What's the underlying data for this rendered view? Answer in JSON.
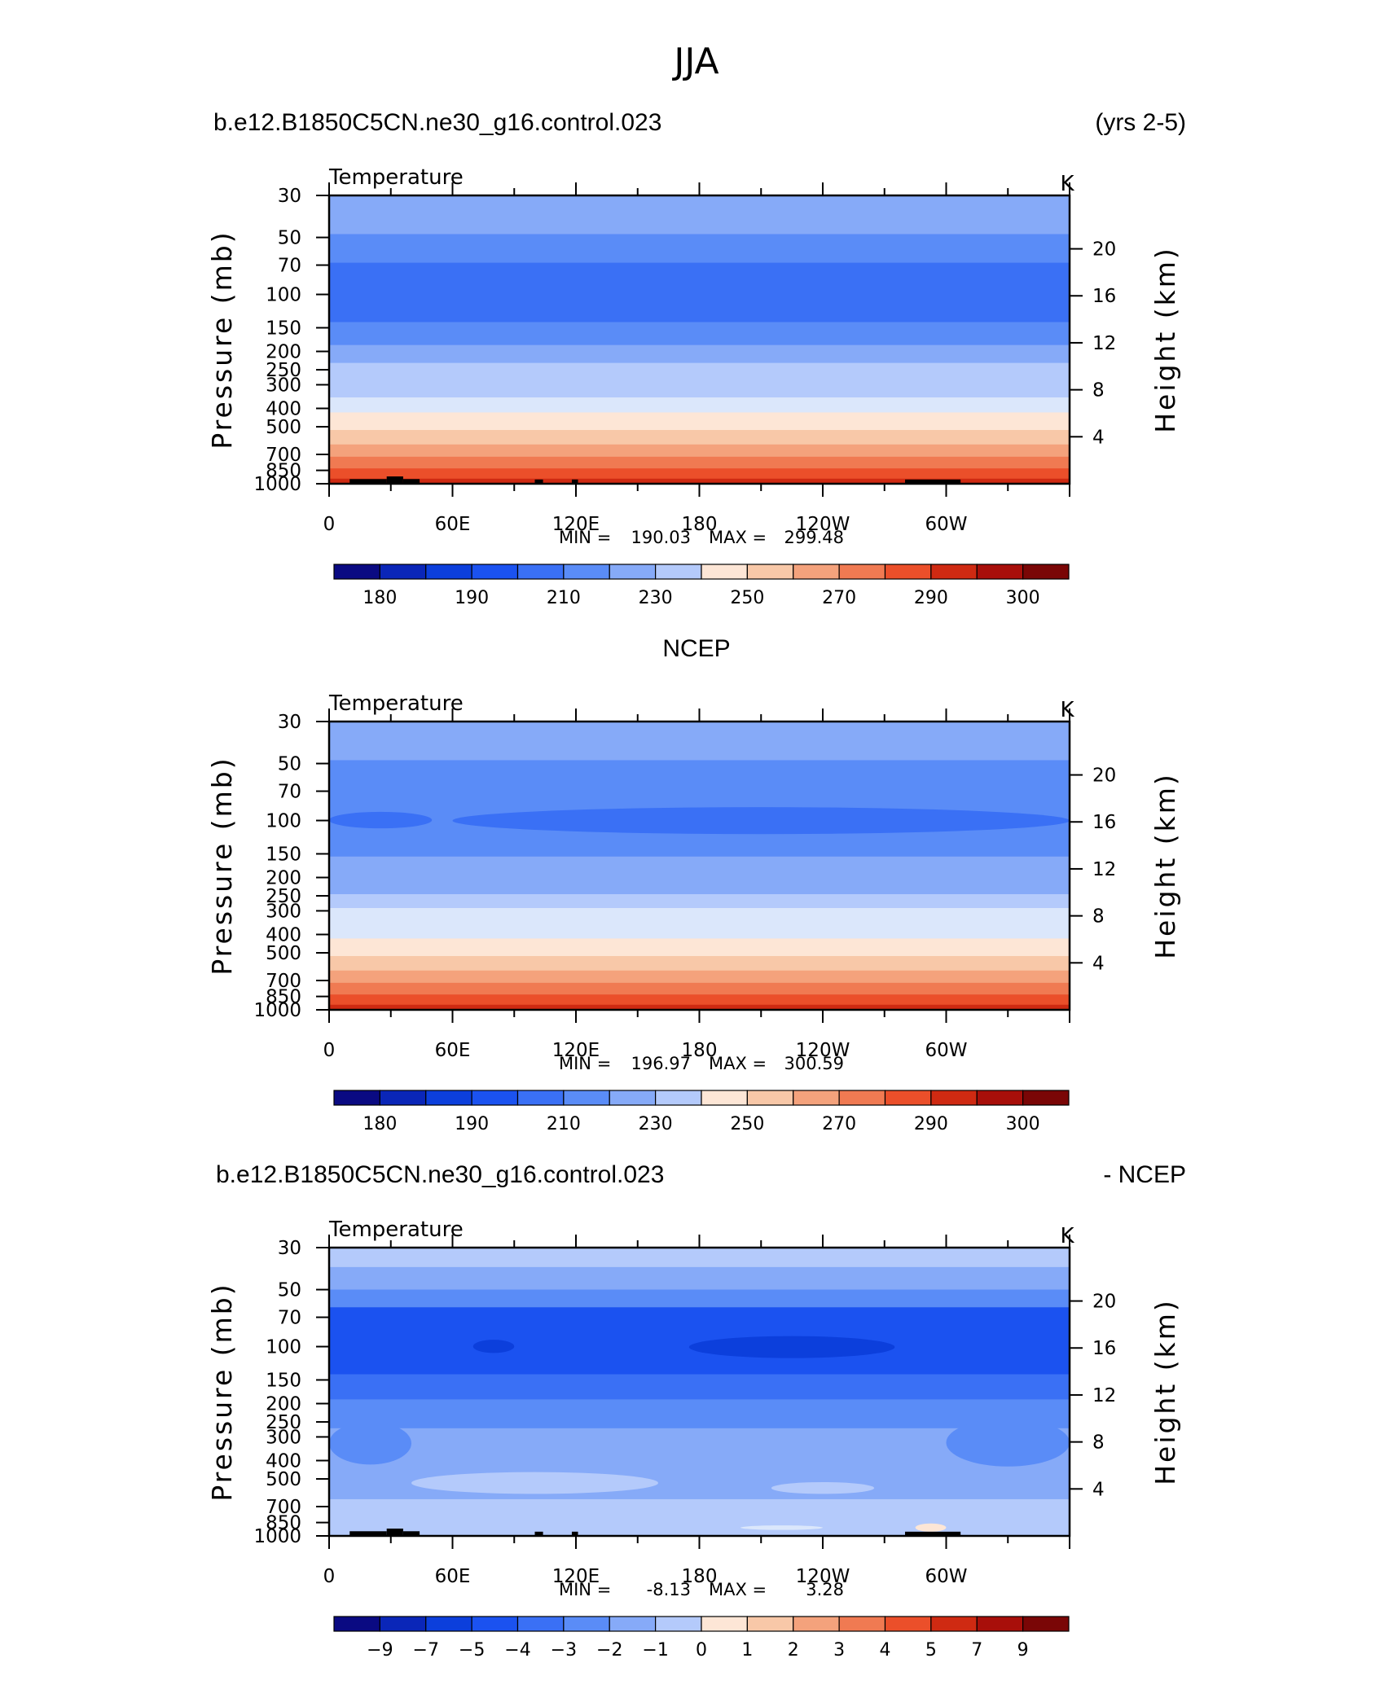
{
  "figure": {
    "season_title": "JJA",
    "case_name": "b.e12.B1850C5CN.ne30_g16.control.023",
    "years": "(yrs 2-5)",
    "obs_name": "NCEP",
    "diff_suffix": "- NCEP"
  },
  "chart_data": [
    {
      "type": "heatmap",
      "id": "model",
      "title": "b.e12.B1850C5CN.ne30_g16.control.023",
      "title_right": "(yrs 2-5)",
      "variable": "Temperature",
      "units": "K",
      "xlabel": "",
      "ylabel": "Pressure (mb)",
      "ylabel_right": "Height (km)",
      "x_ticks": [
        "0",
        "60E",
        "120E",
        "180",
        "120W",
        "60W"
      ],
      "x_range": [
        0,
        360
      ],
      "y_ticks": [
        "30",
        "50",
        "70",
        "100",
        "150",
        "200",
        "250",
        "300",
        "400",
        "500",
        "700",
        "850",
        "1000"
      ],
      "y_range_mb": [
        1000,
        30
      ],
      "height_ticks_km": [
        "20",
        "16",
        "12",
        "8",
        "4"
      ],
      "stats": {
        "min_label": "MIN =",
        "min": "190.03",
        "max_label": "MAX =",
        "max": "299.48"
      },
      "colorbar_labels": [
        "180",
        "190",
        "210",
        "230",
        "250",
        "270",
        "290",
        "300"
      ],
      "contour_levels_K": [
        180,
        185,
        190,
        200,
        210,
        220,
        230,
        240,
        250,
        260,
        270,
        280,
        290,
        295,
        300
      ],
      "bands": [
        {
          "p_top": 30,
          "p_bot": 48,
          "value": 222
        },
        {
          "p_top": 48,
          "p_bot": 68,
          "value": 215
        },
        {
          "p_top": 68,
          "p_bot": 140,
          "value": 207
        },
        {
          "p_top": 140,
          "p_bot": 185,
          "value": 215
        },
        {
          "p_top": 185,
          "p_bot": 230,
          "value": 222
        },
        {
          "p_top": 230,
          "p_bot": 280,
          "value": 232
        },
        {
          "p_top": 280,
          "p_bot": 350,
          "value": 238
        },
        {
          "p_top": 350,
          "p_bot": 420,
          "value": 245
        },
        {
          "p_top": 420,
          "p_bot": 520,
          "value": 255
        },
        {
          "p_top": 520,
          "p_bot": 620,
          "value": 265
        },
        {
          "p_top": 620,
          "p_bot": 720,
          "value": 275
        },
        {
          "p_top": 720,
          "p_bot": 830,
          "value": 285
        },
        {
          "p_top": 830,
          "p_bot": 940,
          "value": 292
        },
        {
          "p_top": 940,
          "p_bot": 1000,
          "value": 297
        }
      ],
      "topography": true
    },
    {
      "type": "heatmap",
      "id": "obs",
      "title": "NCEP",
      "variable": "Temperature",
      "units": "K",
      "xlabel": "",
      "ylabel": "Pressure (mb)",
      "ylabel_right": "Height (km)",
      "x_ticks": [
        "0",
        "60E",
        "120E",
        "180",
        "120W",
        "60W"
      ],
      "x_range": [
        0,
        360
      ],
      "y_ticks": [
        "30",
        "50",
        "70",
        "100",
        "150",
        "200",
        "250",
        "300",
        "400",
        "500",
        "700",
        "850",
        "1000"
      ],
      "y_range_mb": [
        1000,
        30
      ],
      "height_ticks_km": [
        "20",
        "16",
        "12",
        "8",
        "4"
      ],
      "stats": {
        "min_label": "MIN =",
        "min": "196.97",
        "max_label": "MAX =",
        "max": "300.59"
      },
      "colorbar_labels": [
        "180",
        "190",
        "210",
        "230",
        "250",
        "270",
        "290",
        "300"
      ],
      "contour_levels_K": [
        180,
        185,
        190,
        200,
        210,
        220,
        230,
        240,
        250,
        260,
        270,
        280,
        290,
        295,
        300
      ],
      "bands": [
        {
          "p_top": 30,
          "p_bot": 48,
          "value": 222
        },
        {
          "p_top": 48,
          "p_bot": 155,
          "value": 215
        },
        {
          "p_top": 155,
          "p_bot": 195,
          "value": 222
        },
        {
          "p_top": 195,
          "p_bot": 245,
          "value": 228
        },
        {
          "p_top": 245,
          "p_bot": 290,
          "value": 235
        },
        {
          "p_top": 290,
          "p_bot": 350,
          "value": 242
        },
        {
          "p_top": 350,
          "p_bot": 420,
          "value": 248
        },
        {
          "p_top": 420,
          "p_bot": 520,
          "value": 255
        },
        {
          "p_top": 520,
          "p_bot": 620,
          "value": 265
        },
        {
          "p_top": 620,
          "p_bot": 720,
          "value": 275
        },
        {
          "p_top": 720,
          "p_bot": 830,
          "value": 285
        },
        {
          "p_top": 830,
          "p_bot": 940,
          "value": 292
        },
        {
          "p_top": 940,
          "p_bot": 1000,
          "value": 297
        }
      ],
      "features": [
        {
          "lon_start": 0,
          "lon_end": 50,
          "p_top": 90,
          "p_bot": 110,
          "value": 207
        },
        {
          "lon_start": 60,
          "lon_end": 360,
          "p_top": 85,
          "p_bot": 118,
          "value": 207
        }
      ],
      "topography": false
    },
    {
      "type": "heatmap",
      "id": "difference",
      "title": "b.e12.B1850C5CN.ne30_g16.control.023",
      "title_right": "- NCEP",
      "variable": "Temperature",
      "units": "K",
      "xlabel": "",
      "ylabel": "Pressure (mb)",
      "ylabel_right": "Height (km)",
      "x_ticks": [
        "0",
        "60E",
        "120E",
        "180",
        "120W",
        "60W"
      ],
      "x_range": [
        0,
        360
      ],
      "y_ticks": [
        "30",
        "50",
        "70",
        "100",
        "150",
        "200",
        "250",
        "300",
        "400",
        "500",
        "700",
        "850",
        "1000"
      ],
      "y_range_mb": [
        1000,
        30
      ],
      "height_ticks_km": [
        "20",
        "16",
        "12",
        "8",
        "4"
      ],
      "stats": {
        "min_label": "MIN =",
        "min": "-8.13",
        "max_label": "MAX =",
        "max": "3.28"
      },
      "colorbar_labels": [
        "-9",
        "-7",
        "-5",
        "-4",
        "-3",
        "-2",
        "-1",
        "0",
        "1",
        "2",
        "3",
        "4",
        "5",
        "7",
        "9"
      ],
      "contour_levels_K": [
        -9,
        -7,
        -5,
        -4,
        -3,
        -2,
        -1,
        0,
        1,
        2,
        3,
        4,
        5,
        7,
        9
      ],
      "bands": [
        {
          "p_top": 30,
          "p_bot": 38,
          "value": -0.5
        },
        {
          "p_top": 38,
          "p_bot": 50,
          "value": -1.5
        },
        {
          "p_top": 50,
          "p_bot": 62,
          "value": -2.5
        },
        {
          "p_top": 62,
          "p_bot": 140,
          "value": -4.5
        },
        {
          "p_top": 140,
          "p_bot": 190,
          "value": -3.5
        },
        {
          "p_top": 190,
          "p_bot": 270,
          "value": -2.5
        },
        {
          "p_top": 270,
          "p_bot": 640,
          "value": -1.5
        },
        {
          "p_top": 640,
          "p_bot": 1000,
          "value": -0.5
        }
      ],
      "features": [
        {
          "lon_start": 70,
          "lon_end": 90,
          "p_top": 92,
          "p_bot": 108,
          "value": -6
        },
        {
          "lon_start": 175,
          "lon_end": 275,
          "p_top": 88,
          "p_bot": 115,
          "value": -6
        },
        {
          "lon_start": 0,
          "lon_end": 40,
          "p_top": 250,
          "p_bot": 420,
          "value": -2.5
        },
        {
          "lon_start": 300,
          "lon_end": 360,
          "p_top": 240,
          "p_bot": 430,
          "value": -2.5
        },
        {
          "lon_start": 40,
          "lon_end": 160,
          "p_top": 460,
          "p_bot": 600,
          "value": -0.5
        },
        {
          "lon_start": 215,
          "lon_end": 265,
          "p_top": 520,
          "p_bot": 600,
          "value": -0.5
        },
        {
          "lon_start": 200,
          "lon_end": 240,
          "p_top": 880,
          "p_bot": 930,
          "value": 0.5
        },
        {
          "lon_start": 285,
          "lon_end": 300,
          "p_top": 860,
          "p_bot": 950,
          "value": 1.5
        }
      ],
      "topography": true
    }
  ]
}
